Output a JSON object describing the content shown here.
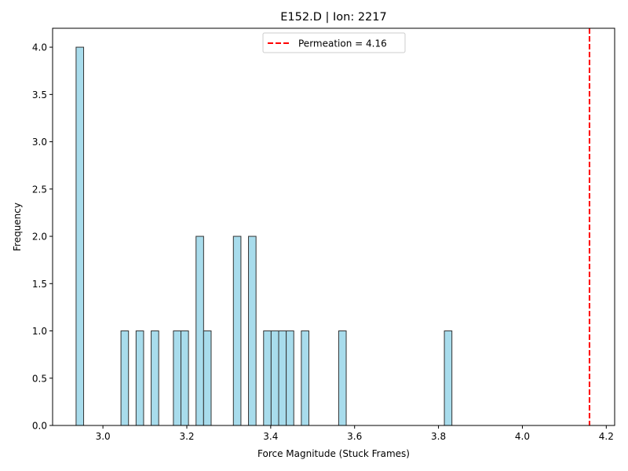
{
  "chart_data": {
    "type": "bar",
    "title": "E152.D | Ion: 2217",
    "xlabel": "Force Magnitude (Stuck Frames)",
    "ylabel": "Frequency",
    "xlim": [
      2.88,
      4.22
    ],
    "ylim": [
      0,
      4.2
    ],
    "bin_width": 0.018,
    "xticks": [
      "3.0",
      "3.2",
      "3.4",
      "3.6",
      "3.8",
      "4.0",
      "4.2"
    ],
    "xtick_values": [
      3.0,
      3.2,
      3.4,
      3.6,
      3.8,
      4.0,
      4.2
    ],
    "yticks": [
      "0.0",
      "0.5",
      "1.0",
      "1.5",
      "2.0",
      "2.5",
      "3.0",
      "3.5",
      "4.0"
    ],
    "ytick_values": [
      0.0,
      0.5,
      1.0,
      1.5,
      2.0,
      2.5,
      3.0,
      3.5,
      4.0
    ],
    "bars": [
      {
        "x": 2.945,
        "count": 4
      },
      {
        "x": 3.052,
        "count": 1
      },
      {
        "x": 3.088,
        "count": 1
      },
      {
        "x": 3.124,
        "count": 1
      },
      {
        "x": 3.177,
        "count": 1
      },
      {
        "x": 3.195,
        "count": 1
      },
      {
        "x": 3.231,
        "count": 2
      },
      {
        "x": 3.249,
        "count": 1
      },
      {
        "x": 3.32,
        "count": 2
      },
      {
        "x": 3.356,
        "count": 2
      },
      {
        "x": 3.392,
        "count": 1
      },
      {
        "x": 3.41,
        "count": 1
      },
      {
        "x": 3.428,
        "count": 1
      },
      {
        "x": 3.446,
        "count": 1
      },
      {
        "x": 3.482,
        "count": 1
      },
      {
        "x": 3.571,
        "count": 1
      },
      {
        "x": 3.823,
        "count": 1
      }
    ],
    "permeation": {
      "value": 4.16,
      "label": "Permeation = 4.16",
      "color": "#ff0000",
      "style": "dashed"
    },
    "bar_color": "#a8dcec",
    "bar_edge_color": "#333333",
    "grid": false,
    "legend_position": "upper-center"
  }
}
